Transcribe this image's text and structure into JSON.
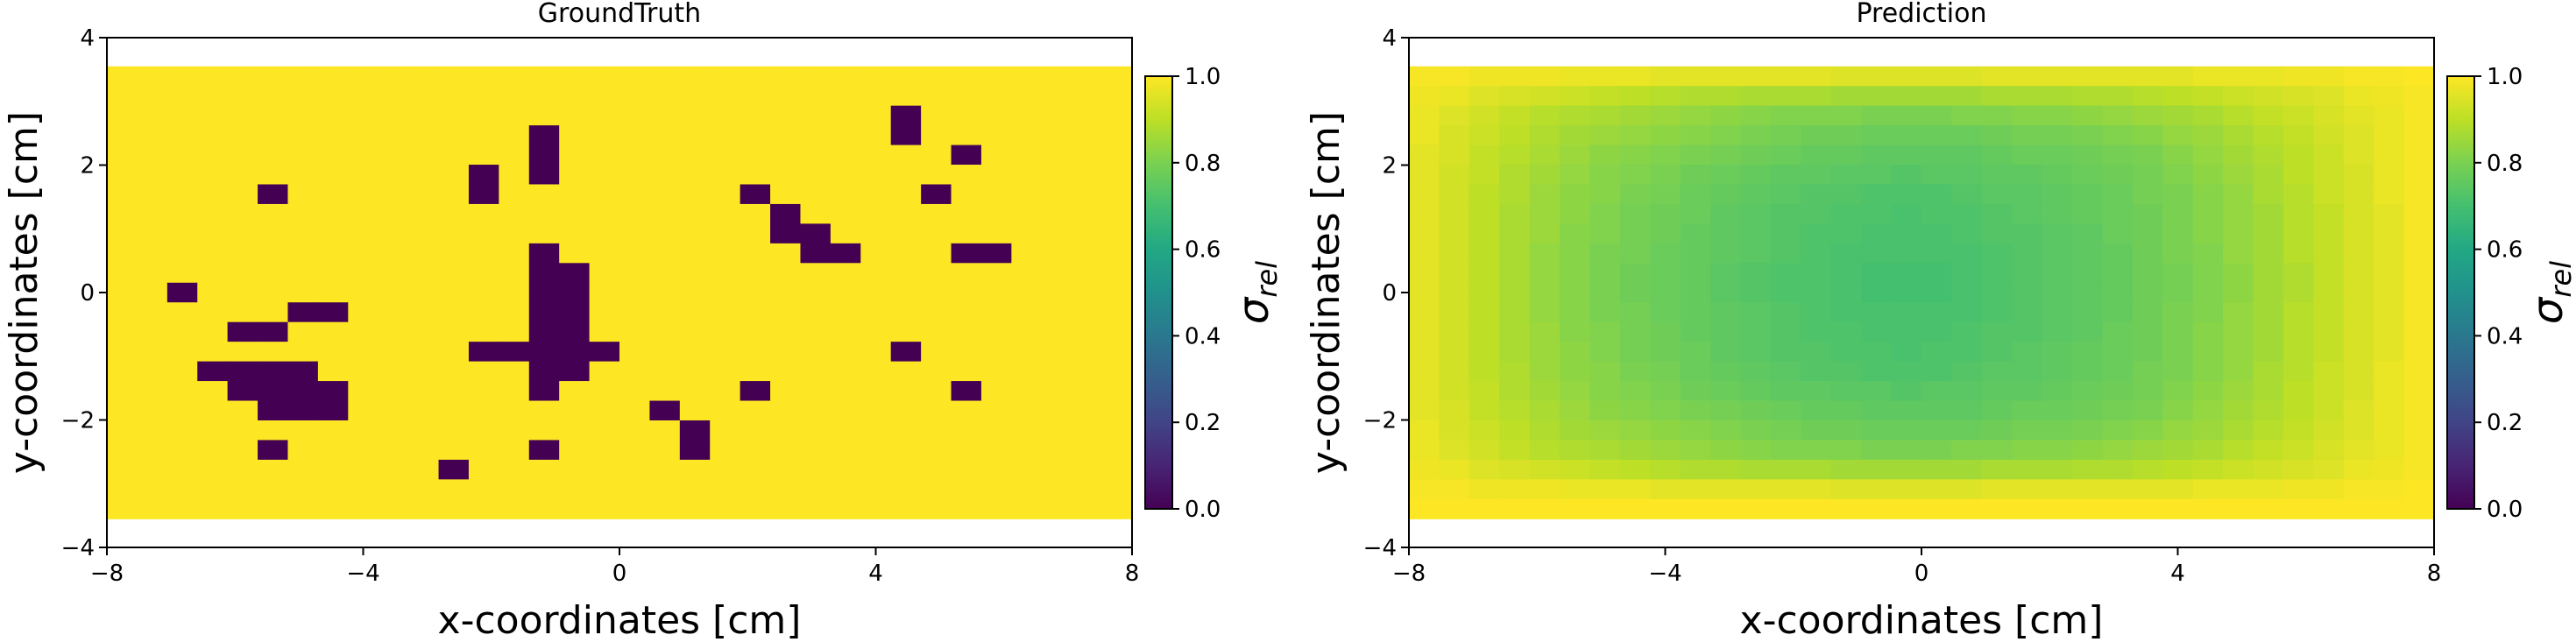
{
  "colormap": "viridis",
  "charts": [
    {
      "title": "GroundTruth",
      "xlabel": "x-coordinates [cm]",
      "ylabel": "y-coordinates [cm]",
      "colorbar_label_base": "σ",
      "colorbar_label_sub": "rel",
      "xticks": [
        {
          "v": -8,
          "t": "−8"
        },
        {
          "v": -4,
          "t": "−4"
        },
        {
          "v": 0,
          "t": "0"
        },
        {
          "v": 4,
          "t": "4"
        },
        {
          "v": 8,
          "t": "8"
        }
      ],
      "yticks": [
        {
          "v": -4,
          "t": "−4"
        },
        {
          "v": -2,
          "t": "−2"
        },
        {
          "v": 0,
          "t": "0"
        },
        {
          "v": 2,
          "t": "2"
        },
        {
          "v": 4,
          "t": "4"
        }
      ],
      "cbticks": [
        {
          "v": 0.0,
          "t": "0.0"
        },
        {
          "v": 0.2,
          "t": "0.2"
        },
        {
          "v": 0.4,
          "t": "0.4"
        },
        {
          "v": 0.6,
          "t": "0.6"
        },
        {
          "v": 0.8,
          "t": "0.8"
        },
        {
          "v": 1.0,
          "t": "1.0"
        }
      ]
    },
    {
      "title": "Prediction",
      "xlabel": "x-coordinates [cm]",
      "ylabel": "y-coordinates [cm]",
      "colorbar_label_base": "σ",
      "colorbar_label_sub": "rel",
      "xticks": [
        {
          "v": -8,
          "t": "−8"
        },
        {
          "v": -4,
          "t": "−4"
        },
        {
          "v": 0,
          "t": "0"
        },
        {
          "v": 4,
          "t": "4"
        },
        {
          "v": 8,
          "t": "8"
        }
      ],
      "yticks": [
        {
          "v": -4,
          "t": "−4"
        },
        {
          "v": -2,
          "t": "−2"
        },
        {
          "v": 0,
          "t": "0"
        },
        {
          "v": 2,
          "t": "2"
        },
        {
          "v": 4,
          "t": "4"
        }
      ],
      "cbticks": [
        {
          "v": 0.0,
          "t": "0.0"
        },
        {
          "v": 0.2,
          "t": "0.2"
        },
        {
          "v": 0.4,
          "t": "0.4"
        },
        {
          "v": 0.6,
          "t": "0.6"
        },
        {
          "v": 0.8,
          "t": "0.8"
        },
        {
          "v": 1.0,
          "t": "1.0"
        }
      ]
    }
  ],
  "chart_data": [
    {
      "type": "heatmap",
      "title": "GroundTruth",
      "xlabel": "x-coordinates [cm]",
      "ylabel": "y-coordinates [cm]",
      "xlim": [
        -8,
        8
      ],
      "ylim": [
        -4,
        4
      ],
      "extent": [
        -8,
        8,
        -3.55,
        3.55
      ],
      "clim": [
        0,
        1
      ],
      "colorbar_label": "σ_rel",
      "rows": [
        "1111111111111111111111111111111111",
        "1111111111111111111111111111111111",
        "1111111111111111111111111101111111",
        "1111111111111101111111111101111111",
        "1111111111111101111111111111011111",
        "1111111111110101111111111111111111",
        "1111101111110111111110111110111111",
        "1111111111111111111111011111111111",
        "1111111111111111111111001111111111",
        "1111111111111101111111100111001111",
        "1111111111111100111111111111111111",
        "1101111111111100111111111111111111",
        "1111110011111100111111111111111111",
        "1111001111111100111111111111111111",
        "1111111111110000011111111101111111",
        "1110000111111100111111111111111111",
        "1111000011111101111110111111011111",
        "1111100011111111110111111111111111",
        "1111111111111111111011111111111111",
        "1111101111111101111011111111111111",
        "1111111111101111111111111111111111",
        "1111111111111111111111111111111111",
        "1111111111111111111111111111111111"
      ]
    },
    {
      "type": "heatmap",
      "title": "Prediction",
      "xlabel": "x-coordinates [cm]",
      "ylabel": "y-coordinates [cm]",
      "xlim": [
        -8,
        8
      ],
      "ylim": [
        -4,
        4
      ],
      "extent": [
        -8,
        8,
        -3.55,
        3.55
      ],
      "clim": [
        0,
        1
      ],
      "colorbar_label": "σ_rel",
      "rows": [
        [
          0.99,
          0.99,
          0.98,
          0.98,
          0.98,
          0.97,
          0.97,
          0.97,
          0.96,
          0.96,
          0.96,
          0.96,
          0.96,
          0.96,
          0.95,
          0.95,
          0.95,
          0.95,
          0.95,
          0.96,
          0.96,
          0.96,
          0.96,
          0.96,
          0.96,
          0.96,
          0.97,
          0.97,
          0.97,
          0.98,
          0.98,
          0.99,
          0.99,
          1.0
        ],
        [
          0.98,
          0.97,
          0.95,
          0.94,
          0.93,
          0.92,
          0.91,
          0.9,
          0.89,
          0.88,
          0.88,
          0.87,
          0.87,
          0.87,
          0.86,
          0.86,
          0.86,
          0.86,
          0.86,
          0.87,
          0.87,
          0.87,
          0.88,
          0.88,
          0.89,
          0.9,
          0.91,
          0.92,
          0.93,
          0.94,
          0.95,
          0.97,
          0.98,
          0.99
        ],
        [
          0.97,
          0.95,
          0.93,
          0.91,
          0.89,
          0.88,
          0.87,
          0.86,
          0.85,
          0.84,
          0.83,
          0.82,
          0.81,
          0.81,
          0.81,
          0.8,
          0.8,
          0.8,
          0.81,
          0.81,
          0.82,
          0.82,
          0.83,
          0.84,
          0.85,
          0.86,
          0.87,
          0.89,
          0.91,
          0.92,
          0.94,
          0.96,
          0.97,
          0.99
        ],
        [
          0.97,
          0.94,
          0.92,
          0.9,
          0.88,
          0.86,
          0.85,
          0.84,
          0.83,
          0.82,
          0.81,
          0.8,
          0.79,
          0.78,
          0.78,
          0.77,
          0.77,
          0.77,
          0.77,
          0.78,
          0.79,
          0.79,
          0.8,
          0.81,
          0.82,
          0.84,
          0.85,
          0.87,
          0.89,
          0.91,
          0.93,
          0.95,
          0.97,
          0.99
        ],
        [
          0.96,
          0.94,
          0.91,
          0.89,
          0.87,
          0.85,
          0.83,
          0.82,
          0.81,
          0.8,
          0.79,
          0.78,
          0.77,
          0.76,
          0.76,
          0.75,
          0.75,
          0.75,
          0.75,
          0.76,
          0.77,
          0.77,
          0.78,
          0.79,
          0.8,
          0.82,
          0.84,
          0.86,
          0.88,
          0.9,
          0.92,
          0.95,
          0.97,
          0.99
        ],
        [
          0.96,
          0.93,
          0.91,
          0.88,
          0.86,
          0.84,
          0.82,
          0.81,
          0.8,
          0.78,
          0.77,
          0.76,
          0.75,
          0.75,
          0.74,
          0.74,
          0.73,
          0.74,
          0.74,
          0.75,
          0.75,
          0.76,
          0.77,
          0.78,
          0.79,
          0.81,
          0.83,
          0.85,
          0.87,
          0.9,
          0.92,
          0.94,
          0.97,
          0.99
        ],
        [
          0.96,
          0.93,
          0.9,
          0.88,
          0.85,
          0.83,
          0.82,
          0.8,
          0.79,
          0.77,
          0.76,
          0.75,
          0.74,
          0.73,
          0.73,
          0.72,
          0.72,
          0.72,
          0.73,
          0.74,
          0.74,
          0.75,
          0.76,
          0.77,
          0.79,
          0.8,
          0.82,
          0.84,
          0.87,
          0.89,
          0.92,
          0.94,
          0.97,
          0.99
        ],
        [
          0.96,
          0.93,
          0.9,
          0.87,
          0.85,
          0.83,
          0.81,
          0.79,
          0.78,
          0.77,
          0.75,
          0.74,
          0.73,
          0.73,
          0.72,
          0.72,
          0.71,
          0.72,
          0.72,
          0.73,
          0.74,
          0.75,
          0.76,
          0.77,
          0.78,
          0.8,
          0.82,
          0.84,
          0.86,
          0.89,
          0.91,
          0.94,
          0.96,
          0.99
        ],
        [
          0.96,
          0.93,
          0.9,
          0.87,
          0.85,
          0.82,
          0.81,
          0.79,
          0.78,
          0.76,
          0.75,
          0.74,
          0.73,
          0.72,
          0.72,
          0.71,
          0.71,
          0.71,
          0.72,
          0.73,
          0.73,
          0.74,
          0.75,
          0.77,
          0.78,
          0.8,
          0.82,
          0.84,
          0.86,
          0.89,
          0.91,
          0.94,
          0.96,
          0.99
        ],
        [
          0.96,
          0.93,
          0.9,
          0.87,
          0.84,
          0.82,
          0.8,
          0.79,
          0.77,
          0.76,
          0.75,
          0.74,
          0.73,
          0.72,
          0.71,
          0.71,
          0.71,
          0.71,
          0.71,
          0.72,
          0.73,
          0.74,
          0.75,
          0.76,
          0.78,
          0.8,
          0.81,
          0.84,
          0.86,
          0.89,
          0.91,
          0.94,
          0.96,
          0.99
        ],
        [
          0.96,
          0.93,
          0.9,
          0.87,
          0.84,
          0.82,
          0.8,
          0.78,
          0.77,
          0.76,
          0.74,
          0.73,
          0.72,
          0.72,
          0.71,
          0.7,
          0.7,
          0.7,
          0.71,
          0.72,
          0.73,
          0.74,
          0.75,
          0.76,
          0.78,
          0.79,
          0.81,
          0.83,
          0.86,
          0.88,
          0.91,
          0.94,
          0.96,
          0.99
        ],
        [
          0.96,
          0.93,
          0.9,
          0.87,
          0.84,
          0.82,
          0.8,
          0.78,
          0.77,
          0.76,
          0.74,
          0.73,
          0.72,
          0.72,
          0.71,
          0.7,
          0.7,
          0.7,
          0.71,
          0.72,
          0.73,
          0.74,
          0.75,
          0.76,
          0.78,
          0.79,
          0.81,
          0.83,
          0.86,
          0.88,
          0.91,
          0.94,
          0.96,
          0.99
        ],
        [
          0.96,
          0.93,
          0.9,
          0.87,
          0.84,
          0.82,
          0.8,
          0.79,
          0.77,
          0.76,
          0.75,
          0.74,
          0.73,
          0.72,
          0.71,
          0.71,
          0.71,
          0.71,
          0.71,
          0.72,
          0.73,
          0.74,
          0.75,
          0.76,
          0.78,
          0.8,
          0.81,
          0.84,
          0.86,
          0.89,
          0.91,
          0.94,
          0.96,
          0.99
        ],
        [
          0.96,
          0.93,
          0.9,
          0.87,
          0.85,
          0.82,
          0.81,
          0.79,
          0.78,
          0.76,
          0.75,
          0.74,
          0.73,
          0.72,
          0.72,
          0.71,
          0.71,
          0.71,
          0.72,
          0.73,
          0.73,
          0.74,
          0.75,
          0.77,
          0.78,
          0.8,
          0.82,
          0.84,
          0.86,
          0.89,
          0.91,
          0.94,
          0.96,
          0.99
        ],
        [
          0.96,
          0.93,
          0.9,
          0.87,
          0.85,
          0.83,
          0.81,
          0.79,
          0.78,
          0.77,
          0.75,
          0.74,
          0.73,
          0.73,
          0.72,
          0.72,
          0.71,
          0.72,
          0.72,
          0.73,
          0.74,
          0.75,
          0.76,
          0.77,
          0.78,
          0.8,
          0.82,
          0.84,
          0.86,
          0.89,
          0.91,
          0.94,
          0.96,
          0.99
        ],
        [
          0.96,
          0.93,
          0.9,
          0.88,
          0.85,
          0.83,
          0.82,
          0.8,
          0.79,
          0.77,
          0.76,
          0.75,
          0.74,
          0.73,
          0.73,
          0.72,
          0.72,
          0.72,
          0.73,
          0.74,
          0.74,
          0.75,
          0.76,
          0.77,
          0.79,
          0.8,
          0.82,
          0.84,
          0.87,
          0.89,
          0.92,
          0.94,
          0.97,
          0.99
        ],
        [
          0.96,
          0.93,
          0.91,
          0.88,
          0.86,
          0.84,
          0.82,
          0.81,
          0.8,
          0.78,
          0.77,
          0.76,
          0.75,
          0.75,
          0.74,
          0.74,
          0.73,
          0.74,
          0.74,
          0.75,
          0.75,
          0.76,
          0.77,
          0.78,
          0.79,
          0.81,
          0.83,
          0.85,
          0.87,
          0.9,
          0.92,
          0.94,
          0.97,
          0.99
        ],
        [
          0.96,
          0.94,
          0.91,
          0.89,
          0.87,
          0.85,
          0.83,
          0.82,
          0.81,
          0.8,
          0.79,
          0.78,
          0.77,
          0.76,
          0.76,
          0.75,
          0.75,
          0.75,
          0.75,
          0.76,
          0.77,
          0.77,
          0.78,
          0.79,
          0.8,
          0.82,
          0.84,
          0.86,
          0.88,
          0.9,
          0.92,
          0.95,
          0.97,
          0.99
        ],
        [
          0.97,
          0.94,
          0.92,
          0.9,
          0.88,
          0.86,
          0.85,
          0.84,
          0.83,
          0.82,
          0.81,
          0.8,
          0.79,
          0.78,
          0.78,
          0.77,
          0.77,
          0.77,
          0.77,
          0.78,
          0.79,
          0.79,
          0.8,
          0.81,
          0.82,
          0.84,
          0.85,
          0.87,
          0.89,
          0.91,
          0.93,
          0.95,
          0.97,
          0.99
        ],
        [
          0.97,
          0.95,
          0.93,
          0.91,
          0.89,
          0.88,
          0.87,
          0.86,
          0.85,
          0.84,
          0.83,
          0.82,
          0.81,
          0.81,
          0.81,
          0.8,
          0.8,
          0.8,
          0.81,
          0.81,
          0.82,
          0.82,
          0.83,
          0.84,
          0.85,
          0.86,
          0.87,
          0.89,
          0.91,
          0.92,
          0.94,
          0.96,
          0.97,
          0.99
        ],
        [
          0.98,
          0.97,
          0.95,
          0.94,
          0.93,
          0.92,
          0.91,
          0.9,
          0.89,
          0.88,
          0.88,
          0.87,
          0.87,
          0.87,
          0.86,
          0.86,
          0.86,
          0.86,
          0.86,
          0.87,
          0.87,
          0.87,
          0.88,
          0.88,
          0.89,
          0.9,
          0.91,
          0.92,
          0.93,
          0.94,
          0.95,
          0.97,
          0.98,
          0.99
        ],
        [
          0.99,
          0.99,
          0.98,
          0.98,
          0.98,
          0.97,
          0.97,
          0.97,
          0.96,
          0.96,
          0.96,
          0.96,
          0.96,
          0.96,
          0.95,
          0.95,
          0.95,
          0.95,
          0.95,
          0.96,
          0.96,
          0.96,
          0.96,
          0.96,
          0.96,
          0.96,
          0.97,
          0.97,
          0.97,
          0.98,
          0.98,
          0.99,
          0.99,
          1.0
        ],
        [
          1.0,
          1.0,
          1.0,
          1.0,
          1.0,
          1.0,
          1.0,
          1.0,
          1.0,
          1.0,
          1.0,
          1.0,
          1.0,
          1.0,
          1.0,
          1.0,
          1.0,
          1.0,
          1.0,
          1.0,
          1.0,
          1.0,
          1.0,
          1.0,
          1.0,
          1.0,
          1.0,
          1.0,
          1.0,
          1.0,
          1.0,
          1.0,
          1.0,
          1.0
        ]
      ]
    }
  ]
}
